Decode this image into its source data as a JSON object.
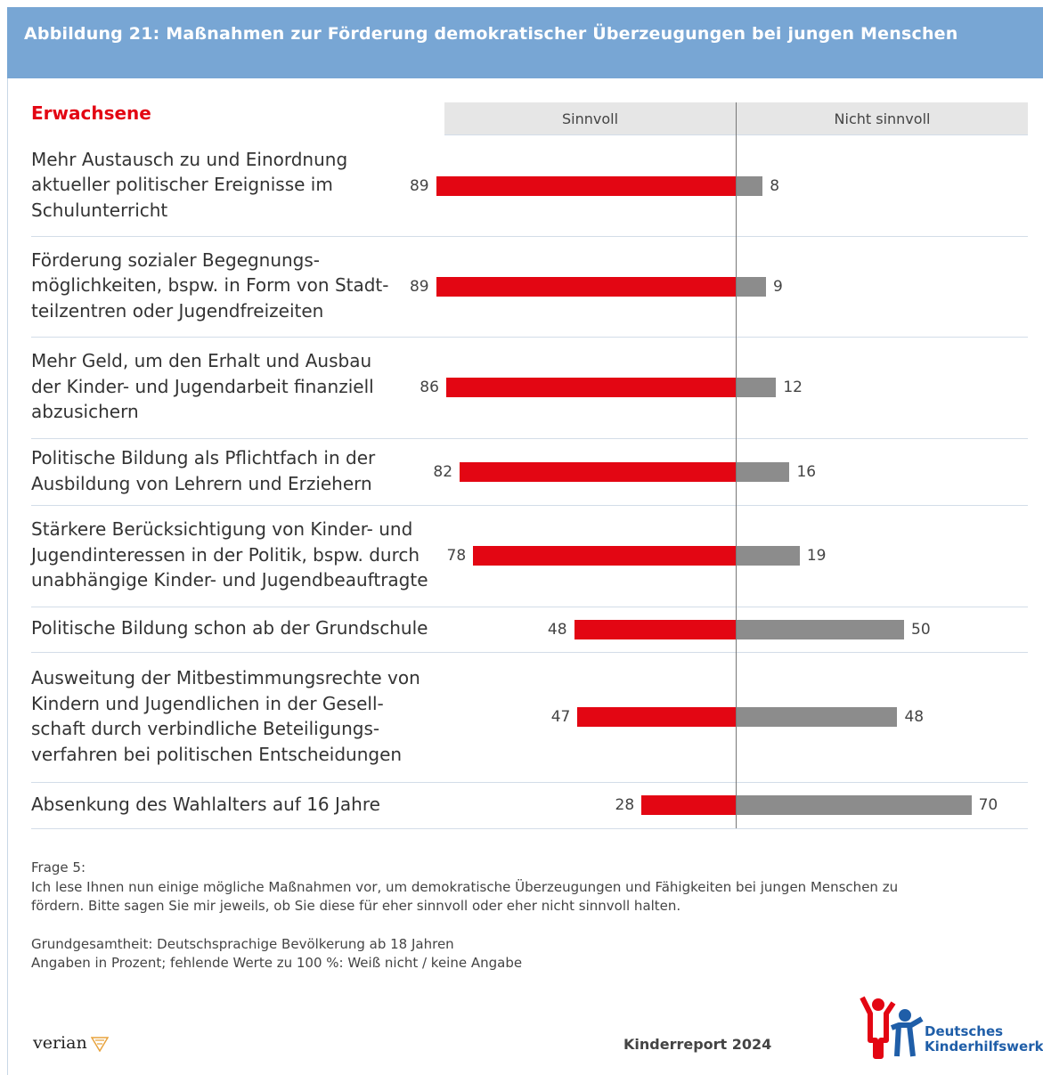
{
  "header": {
    "title": "Abbildung 21: Maßnahmen zur Förderung demokratischer Überzeugungen bei jungen Menschen"
  },
  "chart_data": {
    "type": "diverging_bar",
    "subtitle": "Erwachsene",
    "categories": [
      "Mehr Austausch zu und Einordnung\naktueller politischer Ereignisse im\nSchulunterricht",
      "Förderung sozialer Begegnungs-\nmöglichkeiten, bspw. in Form von Stadt-\nteilzentren oder Jugendfreizeiten",
      "Mehr Geld, um den Erhalt und Ausbau\nder Kinder- und Jugendarbeit finanziell\nabzusichern",
      "Politische Bildung als Pflichtfach in der\nAusbildung von Lehrern und Erziehern",
      "Stärkere Berücksichtigung von Kinder- und\nJugendinteressen in der Politik, bspw. durch\nunabhängige Kinder- und Jugendbeauftragte",
      "Politische Bildung schon ab der Grundschule",
      "Ausweitung der Mitbestimmungsrechte von\nKindern und Jugendlichen in der Gesell-\nschaft durch verbindliche Beteiligungs-\nverfahren bei politischen Entscheidungen",
      "Absenkung des Wahlalters auf 16 Jahre"
    ],
    "series": [
      {
        "name": "Sinnvoll",
        "color": "#e30613",
        "values": [
          89,
          89,
          86,
          82,
          78,
          48,
          47,
          28
        ]
      },
      {
        "name": "Nicht sinnvoll",
        "color": "#8c8c8c",
        "values": [
          8,
          9,
          12,
          16,
          19,
          50,
          48,
          70
        ]
      }
    ]
  },
  "notes": [
    "Frage 5:",
    "Ich lese Ihnen nun einige mögliche Maßnahmen vor, um demokratische Überzeugungen und Fähigkeiten bei jungen Menschen zu\nfördern. Bitte sagen Sie mir jeweils, ob Sie diese für eher sinnvoll oder eher nicht sinnvoll halten.",
    "Grundgesamtheit: Deutschsprachige Bevölkerung ab 18 Jahren\nAngaben in Prozent; fehlende Werte zu 100 %: Weiß nicht / keine Angabe"
  ],
  "footer": {
    "left_logo": "verian",
    "source": "Kinderreport 2024",
    "right_logo": "Deutsches\nKinderhilfswerk"
  }
}
